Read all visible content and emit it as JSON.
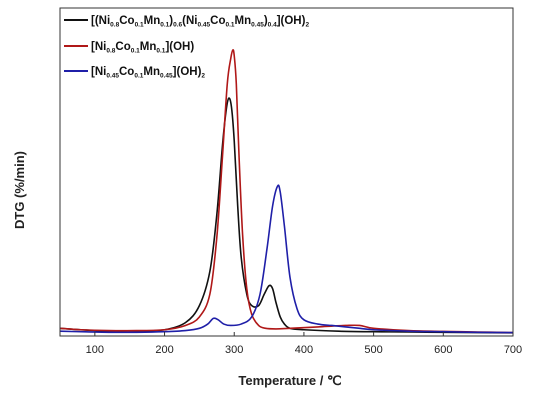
{
  "chart_data": {
    "type": "line",
    "title": "",
    "xlabel": "Temperature / ℃",
    "ylabel": "DTG  (%/min)",
    "xlim": [
      50,
      700
    ],
    "ylim": [
      0,
      1
    ],
    "x_ticks": [
      "100",
      "200",
      "300",
      "400",
      "500",
      "600",
      "700"
    ],
    "x_tick_values": [
      100,
      200,
      300,
      400,
      500,
      600,
      700
    ],
    "y_ticks_shown": false,
    "grid": false,
    "legend_position": "top-left",
    "series": [
      {
        "name_parts": [
          {
            "t": "[(Ni",
            "sub": false
          },
          {
            "t": "0.8",
            "sub": true
          },
          {
            "t": "Co",
            "sub": false
          },
          {
            "t": "0.1",
            "sub": true
          },
          {
            "t": "Mn",
            "sub": false
          },
          {
            "t": "0.1",
            "sub": true
          },
          {
            "t": ")",
            "sub": false
          },
          {
            "t": "0.6",
            "sub": true
          },
          {
            "t": "(Ni",
            "sub": false
          },
          {
            "t": "0.45",
            "sub": true
          },
          {
            "t": "Co",
            "sub": false
          },
          {
            "t": "0.1",
            "sub": true
          },
          {
            "t": "Mn",
            "sub": false
          },
          {
            "t": "0.45",
            "sub": true
          },
          {
            "t": ")",
            "sub": false
          },
          {
            "t": "0.4",
            "sub": true
          },
          {
            "t": "](OH)",
            "sub": false
          },
          {
            "t": "2",
            "sub": true
          }
        ],
        "color": "#111111",
        "x": [
          50,
          80,
          120,
          160,
          200,
          230,
          250,
          265,
          275,
          283,
          288,
          292,
          296,
          300,
          305,
          310,
          318,
          325,
          335,
          343,
          350,
          355,
          360,
          366,
          372,
          380,
          400,
          450,
          500,
          550,
          600,
          650,
          700
        ],
        "y": [
          0.02,
          0.015,
          0.01,
          0.01,
          0.015,
          0.04,
          0.1,
          0.22,
          0.42,
          0.66,
          0.78,
          0.83,
          0.8,
          0.68,
          0.45,
          0.27,
          0.14,
          0.1,
          0.1,
          0.14,
          0.17,
          0.16,
          0.11,
          0.06,
          0.035,
          0.02,
          0.015,
          0.01,
          0.008,
          0.007,
          0.006,
          0.005,
          0.004
        ]
      },
      {
        "name_parts": [
          {
            "t": "[Ni",
            "sub": false
          },
          {
            "t": "0.8",
            "sub": true
          },
          {
            "t": "Co",
            "sub": false
          },
          {
            "t": "0.1",
            "sub": true
          },
          {
            "t": "Mn",
            "sub": false
          },
          {
            "t": "0.1",
            "sub": true
          },
          {
            "t": "](OH)",
            "sub": false
          }
        ],
        "color": "#b01818",
        "x": [
          50,
          80,
          120,
          160,
          200,
          230,
          250,
          265,
          275,
          283,
          290,
          295,
          298,
          300,
          303,
          307,
          312,
          318,
          325,
          335,
          345,
          360,
          380,
          420,
          460,
          480,
          500,
          550,
          600,
          650,
          700
        ],
        "y": [
          0.02,
          0.015,
          0.012,
          0.012,
          0.015,
          0.03,
          0.06,
          0.14,
          0.34,
          0.62,
          0.88,
          0.97,
          1.0,
          0.98,
          0.88,
          0.62,
          0.35,
          0.16,
          0.07,
          0.03,
          0.02,
          0.018,
          0.02,
          0.025,
          0.03,
          0.03,
          0.02,
          0.012,
          0.009,
          0.007,
          0.005
        ]
      },
      {
        "name_parts": [
          {
            "t": "[Ni",
            "sub": false
          },
          {
            "t": "0.45",
            "sub": true
          },
          {
            "t": "Co",
            "sub": false
          },
          {
            "t": "0.1",
            "sub": true
          },
          {
            "t": "Mn",
            "sub": false
          },
          {
            "t": "0.45",
            "sub": true
          },
          {
            "t": "](OH)",
            "sub": false
          },
          {
            "t": "2",
            "sub": true
          }
        ],
        "color": "#1f1fa8",
        "x": [
          50,
          80,
          120,
          160,
          200,
          230,
          250,
          262,
          270,
          277,
          285,
          295,
          310,
          325,
          337,
          347,
          355,
          362,
          366,
          372,
          380,
          390,
          400,
          420,
          440,
          460,
          480,
          500,
          550,
          600,
          650,
          700
        ],
        "y": [
          0.01,
          0.008,
          0.006,
          0.006,
          0.008,
          0.012,
          0.02,
          0.035,
          0.055,
          0.05,
          0.035,
          0.03,
          0.035,
          0.06,
          0.14,
          0.3,
          0.45,
          0.52,
          0.5,
          0.38,
          0.2,
          0.09,
          0.05,
          0.035,
          0.03,
          0.025,
          0.02,
          0.015,
          0.01,
          0.008,
          0.006,
          0.005
        ]
      }
    ]
  }
}
